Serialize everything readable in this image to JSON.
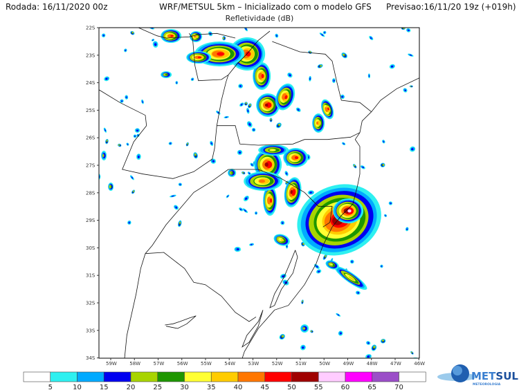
{
  "header": {
    "run": "Rodada: 16/11/2020 00z",
    "title": "WRF/METSUL 5km – Inicializado com o modelo GFS",
    "forecast": "Previsao:16/11/20 19z (+019h)",
    "subtitle": "Refletividade (dB)"
  },
  "map": {
    "lat_labels": [
      "22S",
      "23S",
      "24S",
      "25S",
      "26S",
      "27S",
      "28S",
      "29S",
      "30S",
      "31S",
      "32S",
      "33S",
      "34S"
    ],
    "lon_labels": [
      "59W",
      "58W",
      "57W",
      "56W",
      "55W",
      "54W",
      "53W",
      "52W",
      "51W",
      "50W",
      "49W",
      "48W",
      "47W",
      "46W"
    ]
  },
  "colorbar": {
    "labels": [
      "5",
      "10",
      "15",
      "20",
      "25",
      "30",
      "35",
      "40",
      "45",
      "50",
      "55",
      "60",
      "65",
      "70"
    ],
    "colors": [
      "#ffffff",
      "#2ef0f0",
      "#00aaff",
      "#0000f0",
      "#a8d400",
      "#1e9600",
      "#ffff33",
      "#ffcc00",
      "#ff7700",
      "#ff0000",
      "#a00000",
      "#ffccff",
      "#ff00ff",
      "#9b4ec8",
      "#ffffff"
    ]
  },
  "logo": {
    "name_light": "MET",
    "name_bold": "SUL",
    "tagline": "METEOROLOGIA"
  }
}
